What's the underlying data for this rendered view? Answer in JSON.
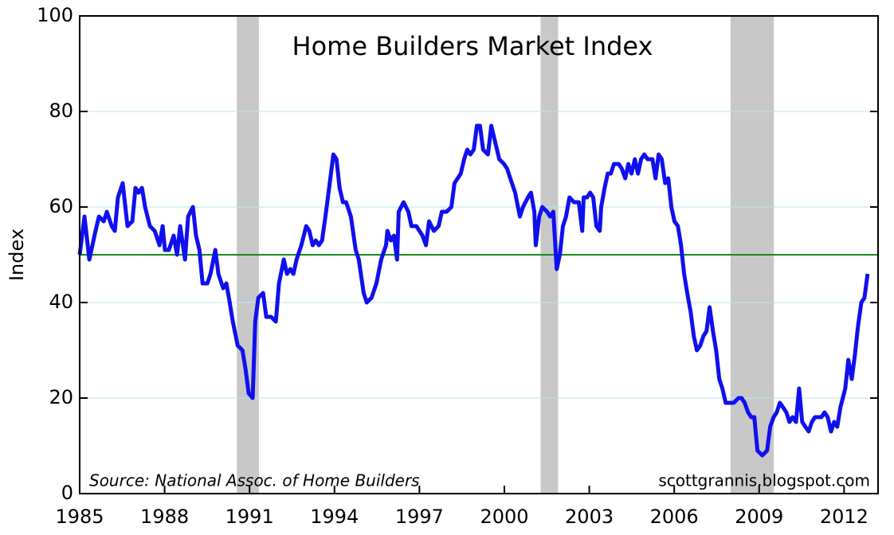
{
  "chart_data": {
    "type": "line",
    "title": "Home Builders Market Index",
    "y_label": "Index",
    "annotations": [
      "Source: National Assoc. of Home Builders",
      "scottgrannis.blogspot.com"
    ],
    "xlim": [
      1985,
      2013.2
    ],
    "xticks": [
      1985,
      1988,
      1991,
      1994,
      1997,
      2000,
      2003,
      2006,
      2009,
      2012
    ],
    "ylim": [
      0,
      100
    ],
    "yticks": [
      0,
      20,
      40,
      60,
      80,
      100
    ],
    "grid": true,
    "reference_line": {
      "value": 50,
      "color": "#1a8a1a"
    },
    "shaded_periods": {
      "color": "#c8c8c8",
      "ranges": [
        [
          1990.55,
          1991.33
        ],
        [
          2001.28,
          2001.9
        ],
        [
          2007.99,
          2009.52
        ]
      ]
    },
    "x": [
      1985.0,
      1985.17,
      1985.34,
      1985.56,
      1985.68,
      1985.85,
      1985.96,
      1986.13,
      1986.24,
      1986.35,
      1986.52,
      1986.69,
      1986.86,
      1986.97,
      1987.08,
      1987.2,
      1987.31,
      1987.48,
      1987.65,
      1987.82,
      1987.93,
      1988.01,
      1988.15,
      1988.32,
      1988.44,
      1988.55,
      1988.72,
      1988.83,
      1989.0,
      1989.11,
      1989.23,
      1989.34,
      1989.51,
      1989.62,
      1989.79,
      1989.9,
      1990.07,
      1990.18,
      1990.3,
      1990.41,
      1990.58,
      1990.75,
      1990.86,
      1990.97,
      1991.11,
      1991.2,
      1991.31,
      1991.48,
      1991.59,
      1991.76,
      1991.93,
      1992.04,
      1992.21,
      1992.32,
      1992.44,
      1992.55,
      1992.66,
      1992.83,
      1993.0,
      1993.11,
      1993.23,
      1993.34,
      1993.45,
      1993.56,
      1993.68,
      1993.79,
      1993.96,
      1994.07,
      1994.18,
      1994.3,
      1994.41,
      1994.58,
      1994.75,
      1994.86,
      1995.03,
      1995.14,
      1995.31,
      1995.48,
      1995.65,
      1995.82,
      1995.87,
      1995.99,
      1996.1,
      1996.21,
      1996.27,
      1996.44,
      1996.61,
      1996.72,
      1996.89,
      1997.0,
      1997.11,
      1997.23,
      1997.34,
      1997.51,
      1997.68,
      1997.79,
      1997.96,
      1998.13,
      1998.24,
      1998.35,
      1998.46,
      1998.58,
      1998.69,
      1998.8,
      1998.92,
      1999.03,
      1999.14,
      1999.25,
      1999.42,
      1999.54,
      1999.7,
      1999.82,
      1999.99,
      2000.1,
      2000.21,
      2000.38,
      2000.55,
      2000.66,
      2000.83,
      2000.94,
      2001.06,
      2001.11,
      2001.23,
      2001.34,
      2001.51,
      2001.62,
      2001.73,
      2001.85,
      2001.96,
      2002.07,
      2002.18,
      2002.3,
      2002.46,
      2002.63,
      2002.75,
      2002.8,
      2002.92,
      2003.03,
      2003.14,
      2003.25,
      2003.37,
      2003.42,
      2003.54,
      2003.65,
      2003.76,
      2003.87,
      2004.04,
      2004.15,
      2004.27,
      2004.38,
      2004.49,
      2004.61,
      2004.72,
      2004.83,
      2004.94,
      2005.06,
      2005.23,
      2005.34,
      2005.45,
      2005.56,
      2005.68,
      2005.79,
      2005.9,
      2006.01,
      2006.13,
      2006.24,
      2006.35,
      2006.46,
      2006.58,
      2006.69,
      2006.8,
      2006.92,
      2007.03,
      2007.14,
      2007.25,
      2007.37,
      2007.48,
      2007.59,
      2007.7,
      2007.82,
      2007.93,
      2008.1,
      2008.27,
      2008.38,
      2008.49,
      2008.61,
      2008.72,
      2008.83,
      2008.94,
      2009.11,
      2009.28,
      2009.39,
      2009.51,
      2009.62,
      2009.73,
      2009.85,
      2009.96,
      2010.07,
      2010.18,
      2010.3,
      2010.41,
      2010.52,
      2010.63,
      2010.75,
      2010.86,
      2010.97,
      2011.08,
      2011.2,
      2011.31,
      2011.42,
      2011.54,
      2011.65,
      2011.76,
      2011.87,
      2012.04,
      2012.15,
      2012.27,
      2012.38,
      2012.49,
      2012.61,
      2012.72,
      2012.83
    ],
    "series": [
      {
        "color": "#1010ee",
        "values": [
          50,
          58,
          49,
          55,
          58,
          57,
          59,
          56,
          55,
          62,
          65,
          56,
          57,
          64,
          63,
          64,
          60,
          56,
          55,
          52,
          56,
          51,
          51,
          54,
          50,
          56,
          49,
          58,
          60,
          54,
          51,
          44,
          44,
          46,
          51,
          46,
          43,
          44,
          40,
          36,
          31,
          30,
          26,
          21,
          20,
          36,
          41,
          42,
          37,
          37,
          36,
          44,
          49,
          46,
          47,
          46,
          49,
          52,
          56,
          55,
          52,
          53,
          52,
          53,
          58,
          63,
          71,
          70,
          64,
          61,
          61,
          58,
          51,
          49,
          42,
          40,
          41,
          44,
          49,
          52,
          55,
          53,
          54,
          49,
          59,
          61,
          59,
          56,
          56,
          55,
          54,
          52,
          57,
          55,
          56,
          59,
          59,
          60,
          65,
          66,
          67,
          70,
          72,
          71,
          72,
          77,
          77,
          72,
          71,
          77,
          73,
          70,
          69,
          68,
          66,
          63,
          58,
          60,
          62,
          63,
          59,
          52,
          58,
          60,
          59,
          58,
          59,
          47,
          50,
          56,
          58,
          62,
          61,
          61,
          55,
          62,
          62,
          63,
          62,
          56,
          55,
          60,
          64,
          67,
          67,
          69,
          69,
          68,
          66,
          69,
          67,
          70,
          67,
          70,
          71,
          70,
          70,
          66,
          71,
          70,
          65,
          66,
          60,
          57,
          56,
          52,
          46,
          42,
          38,
          33,
          30,
          31,
          33,
          34,
          39,
          34,
          30,
          24,
          22,
          19,
          19,
          19,
          20,
          20,
          19,
          17,
          16,
          16,
          9,
          8,
          9,
          14,
          16,
          17,
          19,
          18,
          17,
          15,
          16,
          15,
          22,
          15,
          14,
          13,
          15,
          16,
          16,
          16,
          17,
          16,
          13,
          15,
          14,
          18,
          22,
          28,
          24,
          29,
          35,
          40,
          41,
          46
        ]
      }
    ]
  }
}
